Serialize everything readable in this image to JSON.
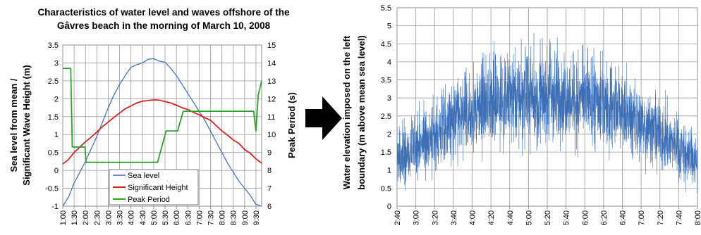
{
  "chart_data": [
    {
      "type": "line",
      "title": "Characteristics of water level and waves offshore of the Gâvres beach in the morning of March 10, 2008",
      "title_lines": [
        "Characteristics of water level and waves offshore of the",
        "Gâvres beach in the morning of March 10, 2008"
      ],
      "ylabel_lines": [
        "Sea level from mean /",
        "Significant Wave Height (m)"
      ],
      "y2label": "Peak Period (s)",
      "xlabel": "",
      "x_ticks": [
        "1:00",
        "1:30",
        "2:00",
        "2:30",
        "3:00",
        "3:30",
        "4:00",
        "4:30",
        "5:00",
        "5:30",
        "6:00",
        "6:30",
        "7:00",
        "7:30",
        "8:00",
        "8:30",
        "9:00",
        "9:30"
      ],
      "xlim": [
        0,
        8.75
      ],
      "ylim": [
        -1,
        3.5
      ],
      "y_ticks": [
        "-1",
        "-0.5",
        "0",
        "0.5",
        "1",
        "1.5",
        "2",
        "2.5",
        "3",
        "3.5"
      ],
      "y2lim": [
        6,
        15
      ],
      "y2_ticks": [
        "6",
        "7",
        "8",
        "9",
        "10",
        "11",
        "12",
        "13",
        "14",
        "15"
      ],
      "grid": true,
      "legend_position": "bottom-center",
      "series": [
        {
          "name": "Sea level",
          "color": "#4a72b8",
          "axis": "left",
          "x": [
            0,
            0.25,
            0.5,
            0.75,
            1,
            1.25,
            1.5,
            1.75,
            2,
            2.25,
            2.5,
            2.75,
            3,
            3.25,
            3.5,
            3.75,
            4,
            4.25,
            4.5,
            4.75,
            5,
            5.25,
            5.5,
            5.75,
            6,
            6.25,
            6.5,
            6.75,
            7,
            7.25,
            7.5,
            7.75,
            8,
            8.25,
            8.5,
            8.75
          ],
          "values": [
            -1.0,
            -0.75,
            -0.35,
            -0.05,
            0.25,
            0.6,
            0.95,
            1.35,
            1.75,
            2.1,
            2.4,
            2.65,
            2.88,
            2.95,
            3.0,
            3.1,
            3.12,
            3.05,
            3.02,
            2.85,
            2.65,
            2.4,
            2.15,
            1.9,
            1.65,
            1.4,
            1.1,
            0.8,
            0.5,
            0.2,
            -0.05,
            -0.3,
            -0.5,
            -0.7,
            -0.95,
            -1.1
          ]
        },
        {
          "name": "Significant Height",
          "color": "#d62424",
          "axis": "left",
          "x": [
            0,
            0.25,
            0.5,
            0.75,
            1,
            1.25,
            1.5,
            1.75,
            2,
            2.25,
            2.5,
            2.75,
            3,
            3.25,
            3.5,
            3.75,
            4,
            4.25,
            4.5,
            4.75,
            5,
            5.25,
            5.5,
            5.75,
            6,
            6.25,
            6.5,
            6.75,
            7,
            7.25,
            7.5,
            7.75,
            8,
            8.25,
            8.5,
            8.75
          ],
          "values": [
            0.18,
            0.3,
            0.5,
            0.65,
            0.8,
            0.93,
            1.07,
            1.22,
            1.35,
            1.48,
            1.6,
            1.72,
            1.8,
            1.88,
            1.93,
            1.95,
            1.97,
            1.96,
            1.92,
            1.88,
            1.82,
            1.75,
            1.7,
            1.62,
            1.55,
            1.47,
            1.4,
            1.25,
            1.1,
            0.98,
            0.85,
            0.75,
            0.58,
            0.48,
            0.32,
            0.2
          ]
        },
        {
          "name": "Peak Period",
          "color": "#2da02d",
          "axis": "right",
          "x": [
            0,
            0.35,
            0.42,
            0.65,
            0.84,
            0.98,
            1.02,
            1.2,
            1.5,
            1.8,
            2.1,
            2.4,
            2.7,
            3.0,
            3.3,
            3.6,
            3.95,
            4.17,
            4.55,
            4.6,
            4.85,
            5.05,
            5.3,
            5.7,
            6.1,
            6.5,
            6.8,
            7.25,
            8.0,
            8.4,
            8.5,
            8.6,
            8.75
          ],
          "values": [
            13.7,
            13.7,
            9.3,
            9.3,
            9.3,
            9.3,
            8.45,
            8.45,
            8.45,
            8.45,
            8.45,
            8.45,
            8.45,
            8.45,
            8.45,
            8.45,
            8.45,
            8.45,
            10.2,
            10.2,
            10.2,
            10.2,
            11.3,
            11.3,
            11.3,
            11.3,
            11.3,
            11.3,
            11.3,
            11.3,
            10.2,
            12.2,
            13.0
          ]
        }
      ]
    },
    {
      "type": "line",
      "title": "",
      "ylabel_lines": [
        "Water elevation imposed on the left",
        "boundary (m above mean sea level)"
      ],
      "xlabel": "",
      "x_ticks": [
        "2:40",
        "3:00",
        "3:20",
        "3:40",
        "4:00",
        "4:20",
        "4:40",
        "5:00",
        "5:20",
        "5:40",
        "6:00",
        "6:20",
        "6:40",
        "7:00",
        "7:20",
        "7:40",
        "8:00"
      ],
      "xlim": [
        0,
        16
      ],
      "ylim": [
        0,
        5.5
      ],
      "y_ticks": [
        "0",
        "0.5",
        "1",
        "1.5",
        "2",
        "2.5",
        "3",
        "3.5",
        "4",
        "4.5",
        "5",
        "5.5"
      ],
      "grid": true,
      "series": [
        {
          "name": "",
          "color": "#3d6fb6",
          "envelope_x": [
            0,
            1,
            2,
            3,
            4,
            5,
            6,
            7,
            8,
            9,
            10,
            11,
            12,
            13,
            14,
            15,
            16
          ],
          "mean": [
            1.25,
            1.6,
            2.0,
            2.35,
            2.65,
            2.9,
            3.0,
            3.05,
            3.05,
            3.0,
            2.95,
            2.8,
            2.55,
            2.3,
            2.0,
            1.65,
            1.25
          ],
          "amplitude": [
            0.75,
            0.95,
            1.05,
            1.15,
            1.2,
            1.25,
            1.3,
            1.3,
            1.3,
            1.3,
            1.25,
            1.2,
            1.15,
            1.1,
            1.0,
            0.95,
            0.85
          ],
          "peak_max": 5.05
        }
      ]
    }
  ],
  "arrow": {
    "color": "#000000",
    "icon": "right-arrow-icon"
  }
}
